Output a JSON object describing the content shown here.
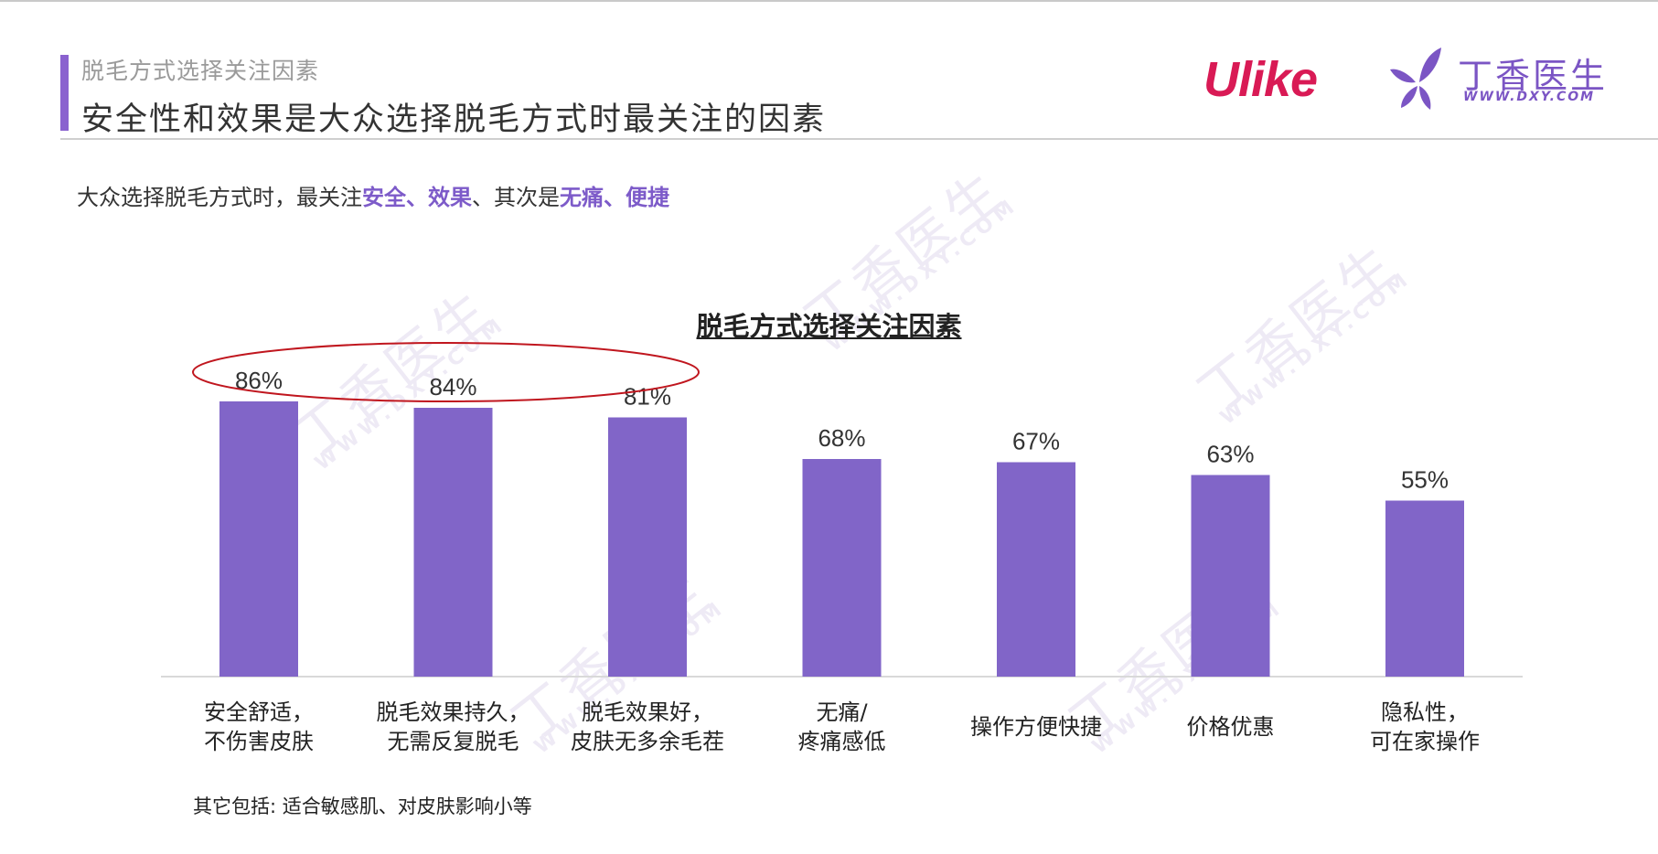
{
  "header": {
    "section_label": "脱毛方式选择关注因素",
    "title": "安全性和效果是大众选择脱毛方式时最关注的因素"
  },
  "brands": {
    "ulike": "Ulike",
    "dxy_name": "丁香医生",
    "dxy_url": "WWW.DXY.COM"
  },
  "summary": {
    "prefix": "大众选择脱毛方式时，最关注",
    "highlight1": "安全、效果",
    "middle": "、其次是",
    "highlight2": "无痛、便捷"
  },
  "chart_data": {
    "type": "bar",
    "title": "脱毛方式选择关注因素",
    "categories": [
      [
        "安全舒适，",
        "不伤害皮肤"
      ],
      [
        "脱毛效果持久，",
        "无需反复脱毛"
      ],
      [
        "脱毛效果好，",
        "皮肤无多余毛茬"
      ],
      [
        "无痛/",
        "疼痛感低"
      ],
      [
        "操作方便快捷"
      ],
      [
        "价格优惠"
      ],
      [
        "隐私性，",
        "可在家操作"
      ]
    ],
    "values": [
      86,
      84,
      81,
      68,
      67,
      63,
      55
    ],
    "value_labels": [
      "86%",
      "84%",
      "81%",
      "68%",
      "67%",
      "63%",
      "55%"
    ],
    "ylim": [
      0,
      100
    ],
    "highlighted_categories": [
      0,
      1,
      2
    ],
    "bar_color": "#8165c8",
    "highlight_color": "#c0161e",
    "grid": false,
    "legend": "none"
  },
  "note": "其它包括: 适合敏感肌、对皮肤影响小等",
  "colors": {
    "accent": "#8a62cf",
    "highlight_text": "#7d5bc9",
    "ulike_red": "#d91a55",
    "dxy_purple": "#7b55c4"
  }
}
